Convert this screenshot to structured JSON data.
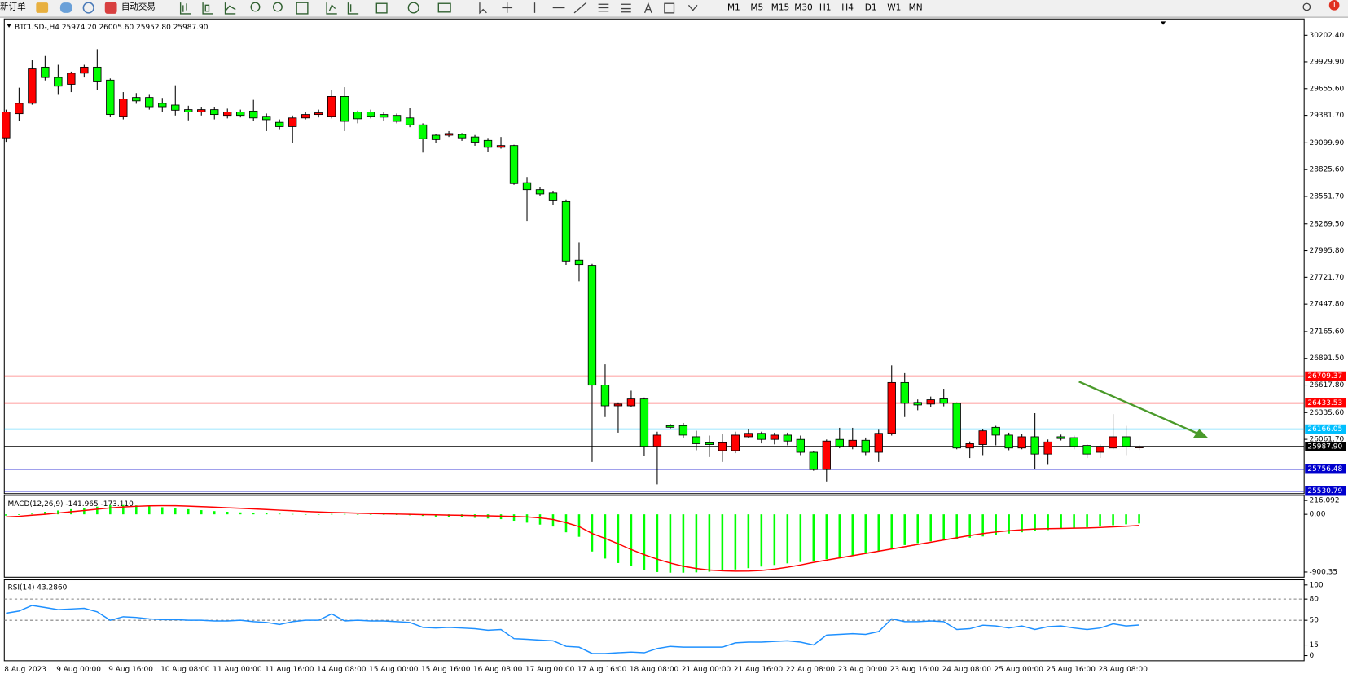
{
  "toolbar": {
    "buttons": [
      "新订单",
      "自动交易"
    ],
    "timeframes": [
      "M1",
      "M5",
      "M15",
      "M30",
      "H1",
      "H4",
      "D1",
      "W1",
      "MN"
    ],
    "badge": "1"
  },
  "chart_data": [
    {
      "type": "candlestick",
      "title": "BTCUSD-,H4",
      "header_labels": [
        "25974.20",
        "26005.60",
        "25952.80",
        "25987.90"
      ],
      "up_color": "#ff0000",
      "down_color": "#00ff00",
      "wick_color": "#000000",
      "categories": [
        "8 Aug 2023",
        null,
        null,
        null,
        "9 Aug 00:00",
        null,
        null,
        null,
        "9 Aug 16:00",
        null,
        null,
        null,
        "10 Aug 08:00",
        null,
        null,
        null,
        "11 Aug 00:00",
        null,
        null,
        null,
        "11 Aug 16:00",
        null,
        null,
        null,
        "14 Aug 08:00",
        null,
        null,
        null,
        "15 Aug 00:00",
        null,
        null,
        null,
        "15 Aug 16:00",
        null,
        null,
        null,
        "16 Aug 08:00",
        null,
        null,
        null,
        "17 Aug 00:00",
        null,
        null,
        null,
        "17 Aug 16:00",
        null,
        null,
        null,
        "18 Aug 08:00",
        null,
        null,
        null,
        "21 Aug 00:00",
        null,
        null,
        null,
        "21 Aug 16:00",
        null,
        null,
        null,
        "22 Aug 08:00",
        null,
        null,
        null,
        "23 Aug 00:00",
        null,
        null,
        null,
        "23 Aug 16:00",
        null,
        null,
        null,
        "24 Aug 08:00",
        null,
        null,
        null,
        "25 Aug 00:00",
        null,
        null,
        null,
        "25 Aug 16:00",
        null,
        null,
        null,
        "28 Aug 08:00",
        null,
        null,
        null
      ],
      "open": [
        29151,
        29398,
        29505,
        29876,
        29770,
        29700,
        29814,
        29876,
        29743,
        29372,
        29565,
        29565,
        29505,
        29487,
        29440,
        29416,
        29440,
        29381,
        29416,
        29425,
        29372,
        29310,
        29266,
        29355,
        29390,
        29372,
        29575,
        29416,
        29416,
        29390,
        29381,
        29355,
        29284,
        29178,
        29178,
        29186,
        29160,
        29125,
        29054,
        29072,
        28692,
        28621,
        28586,
        28498,
        27898,
        27845,
        26617,
        26405,
        26405,
        26475,
        25990,
        26202,
        26202,
        26088,
        26026,
        25946,
        25946,
        26088,
        26123,
        26061,
        26105,
        26061,
        25929,
        25752,
        26061,
        25990,
        26052,
        25929,
        26123,
        26644,
        26440,
        26423,
        26476,
        26431,
        25973,
        26008,
        26185,
        26105,
        25973,
        26088,
        25911,
        26088,
        26079,
        25999,
        25929,
        25973,
        26088,
        25974.2
      ],
      "high": [
        29440,
        29665,
        29946,
        29990,
        29900,
        29830,
        29900,
        30060,
        29760,
        29620,
        29610,
        29600,
        29560,
        29690,
        29480,
        29470,
        29470,
        29450,
        29440,
        29540,
        29400,
        29340,
        29380,
        29420,
        29440,
        29640,
        29670,
        29430,
        29440,
        29420,
        29400,
        29460,
        29300,
        29190,
        29220,
        29200,
        29180,
        29150,
        29160,
        29080,
        28750,
        28650,
        28610,
        28520,
        28080,
        27860,
        26830,
        26440,
        26560,
        26490,
        26140,
        26220,
        26230,
        26150,
        26100,
        26120,
        26140,
        26170,
        26140,
        26130,
        26130,
        26100,
        25940,
        26060,
        26180,
        26180,
        26080,
        26160,
        26820,
        26740,
        26470,
        26500,
        26580,
        26440,
        26040,
        26170,
        26200,
        26130,
        26120,
        26330,
        26060,
        26110,
        26100,
        26010,
        26010,
        26320,
        26200,
        26005.6
      ],
      "low": [
        29110,
        29328,
        29490,
        29740,
        29600,
        29620,
        29770,
        29640,
        29370,
        29340,
        29500,
        29440,
        29420,
        29380,
        29330,
        29380,
        29340,
        29350,
        29360,
        29320,
        29220,
        29240,
        29100,
        29340,
        29360,
        29350,
        29220,
        29300,
        29350,
        29320,
        29300,
        29260,
        29000,
        29100,
        29160,
        29120,
        29070,
        29010,
        29040,
        28670,
        28300,
        28560,
        28460,
        27850,
        27680,
        25830,
        26290,
        26130,
        26390,
        25890,
        25600,
        26170,
        26080,
        25950,
        25880,
        25830,
        25920,
        26080,
        26020,
        26010,
        26000,
        25900,
        25740,
        25630,
        25970,
        25960,
        25900,
        25830,
        26100,
        26290,
        26360,
        26390,
        26400,
        25960,
        25870,
        25900,
        26000,
        25950,
        25960,
        25760,
        25800,
        26050,
        25960,
        25870,
        25870,
        25960,
        25900,
        25952.8
      ],
      "close": [
        29416,
        29505,
        29858,
        29770,
        29681,
        29814,
        29876,
        29725,
        29390,
        29549,
        29530,
        29470,
        29470,
        29434,
        29416,
        29440,
        29390,
        29416,
        29381,
        29355,
        29337,
        29266,
        29355,
        29390,
        29407,
        29575,
        29320,
        29346,
        29372,
        29363,
        29320,
        29284,
        29142,
        29133,
        29195,
        29151,
        29107,
        29054,
        29072,
        28683,
        28621,
        28577,
        28506,
        27889,
        27853,
        26617,
        26405,
        26423,
        26475,
        25990,
        26105,
        26185,
        26105,
        26017,
        26008,
        26026,
        26105,
        26123,
        26061,
        26105,
        26044,
        25929,
        25752,
        26044,
        25990,
        26052,
        25929,
        26123,
        26644,
        26431,
        26414,
        26467,
        26431,
        25973,
        26017,
        26149,
        26105,
        25973,
        26088,
        25911,
        26035,
        26070,
        25990,
        25911,
        25990,
        26088,
        25990,
        25987.9
      ],
      "ylim": [
        25505,
        30317
      ],
      "yticks": [
        {
          "value": 30202.4,
          "label": "30202.40"
        },
        {
          "value": 29929.9,
          "label": "29929.90"
        },
        {
          "value": 29655.6,
          "label": "29655.60"
        },
        {
          "value": 29381.7,
          "label": "29381.70"
        },
        {
          "value": 29099.9,
          "label": "29099.90"
        },
        {
          "value": 28825.6,
          "label": "28825.60"
        },
        {
          "value": 28551.7,
          "label": "28551.70"
        },
        {
          "value": 28269.5,
          "label": "28269.50"
        },
        {
          "value": 27995.8,
          "label": "27995.80"
        },
        {
          "value": 27721.7,
          "label": "27721.70"
        },
        {
          "value": 27447.8,
          "label": "27447.80"
        },
        {
          "value": 27165.6,
          "label": "27165.60"
        },
        {
          "value": 26891.5,
          "label": "26891.50"
        },
        {
          "value": 26617.8,
          "label": "26617.80"
        },
        {
          "value": 26335.6,
          "label": "26335.60"
        },
        {
          "value": 26061.7,
          "label": "26061.70"
        }
      ],
      "hlines": [
        {
          "value": 26709.37,
          "label": "26709.37",
          "color": "#ff0000"
        },
        {
          "value": 26433.53,
          "label": "26433.53",
          "color": "#ff0000"
        },
        {
          "value": 26166.05,
          "label": "26166.05",
          "color": "#00bfff"
        },
        {
          "value": 25987.9,
          "label": "25987.90",
          "color": "#000000"
        },
        {
          "value": 25756.48,
          "label": "25756.48",
          "color": "#0000cd"
        },
        {
          "value": 25530.79,
          "label": "25530.79",
          "color": "#0000cd"
        }
      ]
    },
    {
      "type": "bar",
      "title": "MACD(12,26,9) -141.965 -173.110",
      "series": [
        {
          "type": "bar",
          "color": "#00ff00",
          "values": [
            -20,
            -10,
            10,
            40,
            60,
            80,
            100,
            120,
            140,
            145,
            140,
            125,
            110,
            95,
            80,
            65,
            50,
            40,
            30,
            25,
            20,
            10,
            5,
            0,
            0,
            5,
            5,
            0,
            -5,
            -5,
            -10,
            -15,
            -25,
            -35,
            -40,
            -45,
            -55,
            -65,
            -75,
            -100,
            -130,
            -160,
            -190,
            -280,
            -350,
            -580,
            -690,
            -760,
            -810,
            -870,
            -900,
            -910,
            -910,
            -905,
            -895,
            -885,
            -860,
            -840,
            -815,
            -790,
            -765,
            -745,
            -730,
            -700,
            -670,
            -640,
            -615,
            -580,
            -520,
            -480,
            -450,
            -420,
            -395,
            -380,
            -365,
            -345,
            -320,
            -300,
            -280,
            -265,
            -245,
            -225,
            -210,
            -200,
            -190,
            -170,
            -155,
            -141.965
          ]
        },
        {
          "type": "line",
          "color": "#ff0000",
          "values": [
            -40,
            -30,
            -15,
            0,
            20,
            40,
            60,
            80,
            100,
            115,
            125,
            132,
            135,
            133,
            128,
            120,
            112,
            103,
            95,
            85,
            75,
            65,
            55,
            45,
            37,
            30,
            25,
            18,
            12,
            8,
            4,
            0,
            -4,
            -8,
            -12,
            -16,
            -20,
            -24,
            -28,
            -33,
            -40,
            -55,
            -80,
            -130,
            -190,
            -300,
            -376,
            -460,
            -550,
            -630,
            -700,
            -760,
            -810,
            -845,
            -870,
            -880,
            -887,
            -885,
            -875,
            -855,
            -825,
            -790,
            -750,
            -715,
            -680,
            -645,
            -610,
            -575,
            -540,
            -505,
            -470,
            -435,
            -400,
            -365,
            -330,
            -300,
            -275,
            -255,
            -240,
            -228,
            -224,
            -220,
            -216,
            -212,
            -205,
            -195,
            -185,
            -173.11
          ]
        }
      ],
      "ylim": [
        -981,
        296
      ],
      "yticks": [
        216.092,
        {
          "value": 0,
          "label": "0.00"
        },
        -900.35
      ]
    },
    {
      "type": "line",
      "title": "RSI(14) 43.2860",
      "series": [
        {
          "color": "#1e90ff",
          "values": [
            60,
            63,
            71,
            68,
            65,
            66,
            67,
            62,
            50,
            55,
            54,
            52,
            51,
            51,
            50,
            50,
            49,
            49,
            50,
            48,
            47,
            44,
            48,
            50,
            50,
            59,
            49,
            50,
            49,
            49,
            48,
            47,
            40,
            39,
            40,
            39,
            38,
            36,
            37,
            24,
            23,
            22,
            21,
            13,
            12,
            3,
            3,
            4,
            5,
            4,
            10,
            13,
            12,
            12,
            12,
            12,
            18,
            19,
            19,
            20,
            21,
            19,
            15,
            29,
            30,
            31,
            30,
            34,
            52,
            48,
            48,
            49,
            48,
            37,
            38,
            43,
            42,
            39,
            42,
            37,
            41,
            42,
            39,
            37,
            39,
            45,
            42,
            43.286
          ]
        }
      ],
      "ylim": [
        -7.3,
        107.3
      ],
      "yticks": [
        100,
        80,
        50,
        15,
        0
      ],
      "levels": [
        80,
        50,
        15
      ]
    }
  ]
}
